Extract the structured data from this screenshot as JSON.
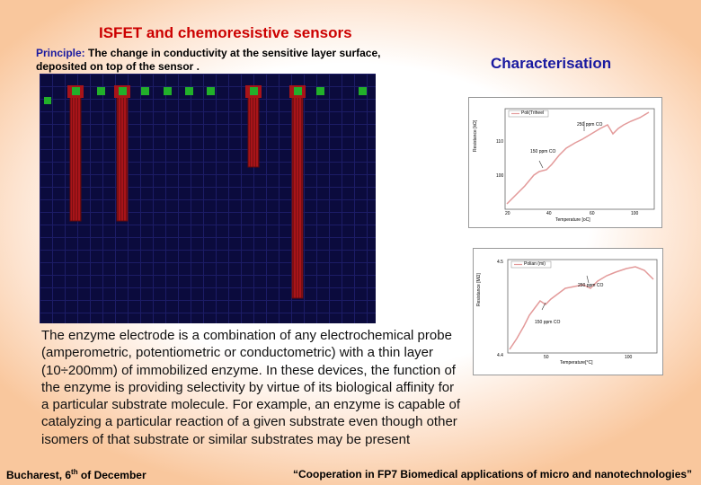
{
  "title": "ISFET  and chemoresistive sensors",
  "principle": {
    "label": "Principle:",
    "text": " The change in conductivity  at the sensitive layer surface, deposited on top of the sensor ."
  },
  "characterisation_title": "Characterisation",
  "body_text": "The enzyme electrode is a combination of any electrochemical probe (amperometric, potentiometric or conductometric) with a thin layer (10÷200mm) of immobilized enzyme. In these devices, the function of the enzyme is providing selectivity by virtue of its biological affinity for a particular substrate molecule. For example, an enzyme is capable of catalyzing a particular reaction of a given substrate even though other isomers of that substrate or similar substrates may be present",
  "footer": {
    "left_prefix": "Bucharest, 6",
    "left_sup": "th",
    "left_suffix": " of December",
    "right": "“Cooperation in FP7 Biomedical applications of micro and nanotechnologies”"
  },
  "graph1": {
    "legend": "Poli(Triheel",
    "ann_top": "250 ppm CO",
    "ann_mid": "150 ppm CO",
    "xlabel": "Temperature [oC]",
    "ylabel": "Resistance [kΩ]",
    "xticks": [
      "20",
      "40",
      "60",
      "100"
    ],
    "yticks": [
      "110",
      "100"
    ]
  },
  "graph2": {
    "legend": "Polian (mi)",
    "ann_top": "250 ppm CO",
    "ann_bottom": "150 ppm CO",
    "xlabel": "Temperature[°C]",
    "ylabel": "Resistance [MΩ]",
    "xticks": [
      "50",
      "100"
    ],
    "yticks": [
      "4.5",
      "4.4"
    ]
  },
  "colors": {
    "title": "#cc0000",
    "heading": "#1a1aa0",
    "substrate": "#0a0a3a",
    "electrode": "#a81419",
    "pad": "#22b02a",
    "curve": "#e39a9a"
  }
}
